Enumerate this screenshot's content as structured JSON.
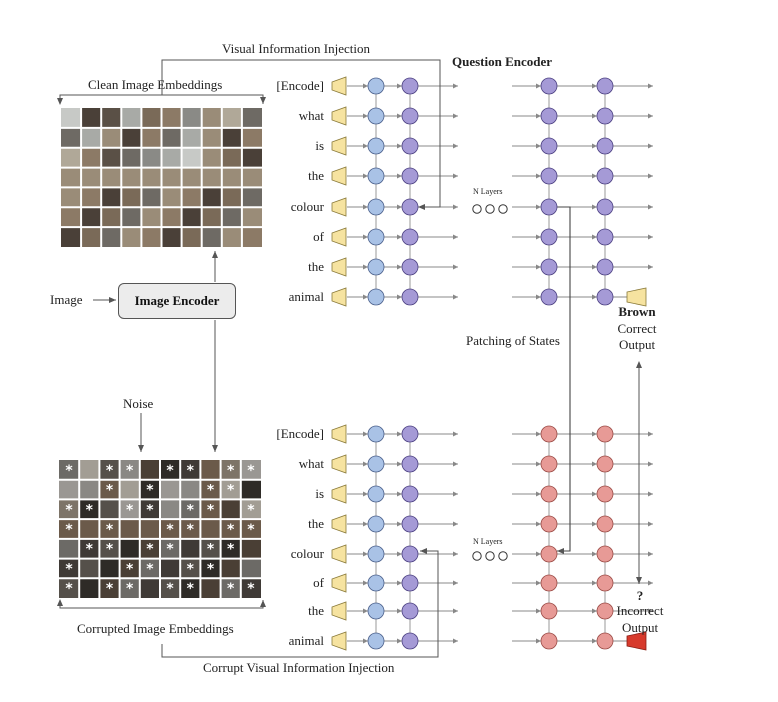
{
  "labels": {
    "visual_injection": "Visual Information Injection",
    "clean_embeddings": "Clean Image Embeddings",
    "question_encoder": "Question Encoder",
    "image": "Image",
    "image_encoder": "Image Encoder",
    "noise": "Noise",
    "patching": "Patching of States",
    "corrupted_embeddings": "Corrupted Image Embeddings",
    "corrupt_injection": "Corrupt Visual Information Injection",
    "n_layers_top": "N Layers",
    "n_layers_bottom": "N Layers"
  },
  "tokens": [
    "[Encode]",
    "what",
    "is",
    "the",
    "colour",
    "of",
    "the",
    "animal"
  ],
  "outputs": {
    "correct_word": "Brown",
    "correct_line1": "Correct",
    "correct_line2": "Output",
    "incorrect_word": "?",
    "incorrect_line1": "Incorrect",
    "incorrect_line2": "Output"
  },
  "colors": {
    "token_trapezoid": "#f6e3a0",
    "blue_node": "#a9c2e6",
    "purple_node": "#a59ad6",
    "red_node": "#e79a96",
    "correct_output": "#f6e3a0",
    "incorrect_output": "#d73a2c",
    "line": "#666666"
  }
}
